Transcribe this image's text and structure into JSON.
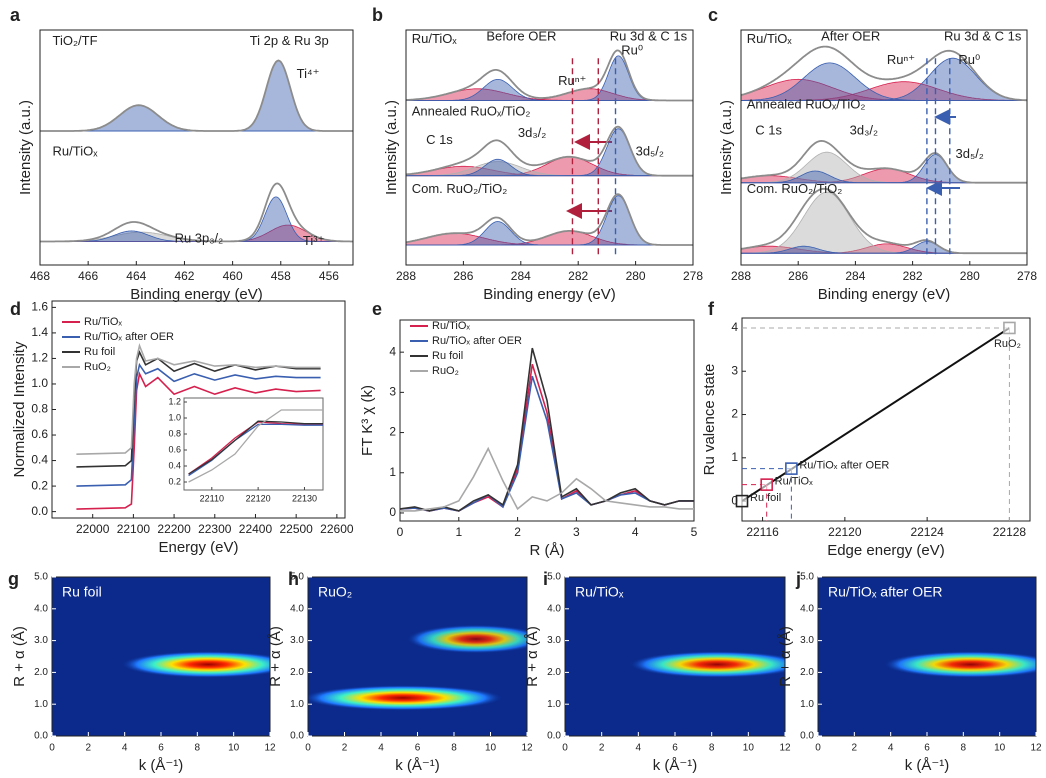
{
  "chart_data": [
    {
      "type": "xps",
      "label": "a",
      "xlabel": "Binding energy (eV)",
      "ylabel": "Intensity (a.u.)",
      "xlim": [
        468,
        455
      ],
      "xticks": [
        468,
        466,
        464,
        462,
        460,
        458,
        456
      ],
      "ylim": [
        0,
        10
      ],
      "spectra": [
        {
          "baseline": 5.7,
          "components": [
            {
              "center": 463.9,
              "height": 1.1,
              "width": 0.8,
              "color": "#3a5fb0"
            },
            {
              "center": 458.1,
              "height": 3.0,
              "width": 0.5,
              "color": "#3a5fb0"
            }
          ]
        },
        {
          "baseline": 1.0,
          "components": [
            {
              "center": 463.8,
              "height": 0.4,
              "width": 1.1,
              "color": "#b0b0b0"
            },
            {
              "center": 464.2,
              "height": 0.45,
              "width": 0.7,
              "color": "#3a5fb0"
            },
            {
              "center": 457.7,
              "height": 0.7,
              "width": 0.75,
              "color": "#d6204e"
            },
            {
              "center": 458.2,
              "height": 1.9,
              "width": 0.45,
              "color": "#3a5fb0"
            }
          ]
        }
      ],
      "annotations": [
        "TiO₂/TF",
        "Ti 2p & Ru 3p",
        "Ti⁴⁺",
        "Ru/TiOₓ",
        "Ru 3p₃/₂",
        "Ti³⁺"
      ]
    },
    {
      "type": "xps",
      "label": "b",
      "xlabel": "Binding energy (eV)",
      "ylabel": "Intensity (a.u.)",
      "xlim": [
        288,
        278
      ],
      "xticks": [
        288,
        286,
        284,
        282,
        280,
        278
      ],
      "ylim": [
        0,
        10
      ],
      "spectra": [
        {
          "baseline": 7.0,
          "components": [
            {
              "center": 285.5,
              "height": 0.5,
              "width": 1.0,
              "color": "#d6204e"
            },
            {
              "center": 281.6,
              "height": 0.5,
              "width": 0.8,
              "color": "#d6204e"
            },
            {
              "center": 284.8,
              "height": 0.9,
              "width": 0.5,
              "color": "#3a5fb0"
            },
            {
              "center": 280.6,
              "height": 1.9,
              "width": 0.35,
              "color": "#3a5fb0"
            }
          ]
        },
        {
          "baseline": 3.8,
          "components": [
            {
              "center": 286.0,
              "height": 0.4,
              "width": 1.0,
              "color": "#d6204e"
            },
            {
              "center": 282.3,
              "height": 0.8,
              "width": 0.8,
              "color": "#d6204e"
            },
            {
              "center": 284.8,
              "height": 0.6,
              "width": 0.8,
              "color": "#b0b0b0"
            },
            {
              "center": 284.8,
              "height": 0.7,
              "width": 0.45,
              "color": "#3a5fb0"
            },
            {
              "center": 280.6,
              "height": 2.0,
              "width": 0.4,
              "color": "#3a5fb0"
            }
          ]
        },
        {
          "baseline": 0.85,
          "components": [
            {
              "center": 286.3,
              "height": 0.5,
              "width": 1.0,
              "color": "#d6204e"
            },
            {
              "center": 282.3,
              "height": 0.6,
              "width": 0.8,
              "color": "#d6204e"
            },
            {
              "center": 284.8,
              "height": 1.0,
              "width": 0.45,
              "color": "#3a5fb0"
            },
            {
              "center": 280.6,
              "height": 2.1,
              "width": 0.4,
              "color": "#3a5fb0"
            }
          ]
        }
      ],
      "ref_lines": [
        {
          "value": 281.3,
          "color": "#b0203c"
        },
        {
          "value": 282.2,
          "color": "#b0203c"
        },
        {
          "value": 280.7,
          "color": "#3a5fb0"
        }
      ],
      "annotations": [
        "Ru/TiOₓ",
        "Before OER",
        "Ru 3d & C 1s",
        "Ru⁰",
        "Ruⁿ⁺",
        "Annealed RuOₓ/TiO₂",
        "C 1s",
        "3d₃/₂",
        "3d₅/₂",
        "Com. RuO₂/TiO₂"
      ]
    },
    {
      "type": "xps",
      "label": "c",
      "xlabel": "Binding energy (eV)",
      "ylabel": "Intensity (a.u.)",
      "xlim": [
        288,
        278
      ],
      "xticks": [
        288,
        286,
        284,
        282,
        280,
        278
      ],
      "ylim": [
        0,
        10
      ],
      "spectra": [
        {
          "baseline": 7.0,
          "components": [
            {
              "center": 286.0,
              "height": 0.9,
              "width": 1.2,
              "color": "#d6204e"
            },
            {
              "center": 282.3,
              "height": 0.8,
              "width": 1.2,
              "color": "#d6204e"
            },
            {
              "center": 284.9,
              "height": 1.6,
              "width": 0.9,
              "color": "#3a5fb0"
            },
            {
              "center": 280.6,
              "height": 1.8,
              "width": 0.8,
              "color": "#3a5fb0"
            }
          ]
        },
        {
          "baseline": 3.5,
          "components": [
            {
              "center": 287.0,
              "height": 0.3,
              "width": 1.0,
              "color": "#d6204e"
            },
            {
              "center": 282.9,
              "height": 0.6,
              "width": 0.8,
              "color": "#d6204e"
            },
            {
              "center": 285.0,
              "height": 1.3,
              "width": 0.7,
              "color": "#b0b0b0"
            },
            {
              "center": 285.4,
              "height": 0.5,
              "width": 0.5,
              "color": "#3a5fb0"
            },
            {
              "center": 281.2,
              "height": 1.2,
              "width": 0.4,
              "color": "#3a5fb0"
            }
          ]
        },
        {
          "baseline": 0.5,
          "components": [
            {
              "center": 287.0,
              "height": 0.3,
              "width": 1.0,
              "color": "#d6204e"
            },
            {
              "center": 282.9,
              "height": 0.4,
              "width": 0.7,
              "color": "#d6204e"
            },
            {
              "center": 285.0,
              "height": 2.6,
              "width": 0.8,
              "color": "#b0b0b0"
            },
            {
              "center": 285.8,
              "height": 0.3,
              "width": 0.5,
              "color": "#3a5fb0"
            },
            {
              "center": 281.5,
              "height": 0.5,
              "width": 0.4,
              "color": "#3a5fb0"
            }
          ]
        }
      ],
      "ref_lines": [
        {
          "value": 280.7,
          "color": "#3a5fb0"
        },
        {
          "value": 281.2,
          "color": "#3a5fb0"
        },
        {
          "value": 281.5,
          "color": "#3a5fb0"
        }
      ],
      "annotations": [
        "Ru/TiOₓ",
        "After OER",
        "Ru 3d & C 1s",
        "Ruⁿ⁺",
        "Ru⁰",
        "Annealed RuOₓ/TiO₂",
        "C 1s",
        "3d₃/₂",
        "3d₅/₂",
        "Com. RuO₂/TiO₂"
      ]
    },
    {
      "type": "line",
      "label": "d",
      "xlabel": "Energy (eV)",
      "ylabel": "Normalized Intensity",
      "xlim": [
        21900,
        22620
      ],
      "xticks": [
        22000,
        22100,
        22200,
        22300,
        22400,
        22500,
        22600
      ],
      "ylim": [
        -0.05,
        1.65
      ],
      "yticks": [
        {
          "value": 0,
          "label": "0.0"
        },
        0.2,
        0.4,
        0.6,
        0.8,
        {
          "value": 1,
          "label": "1.0"
        },
        1.2,
        1.4,
        1.6
      ],
      "x": [
        21960,
        22080,
        22095,
        22102,
        22108,
        22115,
        22130,
        22160,
        22200,
        22250,
        22300,
        22350,
        22400,
        22450,
        22500,
        22560
      ],
      "series": [
        {
          "name": "Ru/TiOₓ",
          "color": "#d6204e",
          "values": [
            0.02,
            0.03,
            0.06,
            0.5,
            0.95,
            1.08,
            0.98,
            1.05,
            0.92,
            0.98,
            0.92,
            0.97,
            0.93,
            0.96,
            0.94,
            0.95
          ]
        },
        {
          "name": "Ru/TiOₓ after OER",
          "color": "#3a5fb0",
          "values": [
            0.2,
            0.21,
            0.25,
            0.7,
            1.05,
            1.15,
            1.08,
            1.12,
            1.02,
            1.08,
            1.03,
            1.07,
            1.04,
            1.06,
            1.05,
            1.05
          ]
        },
        {
          "name": "Ru foil",
          "color": "#333333",
          "values": [
            0.35,
            0.36,
            0.4,
            0.9,
            1.18,
            1.25,
            1.15,
            1.2,
            1.1,
            1.16,
            1.1,
            1.15,
            1.11,
            1.14,
            1.12,
            1.12
          ]
        },
        {
          "name": "RuO₂",
          "color": "#a8a8a8",
          "values": [
            0.45,
            0.46,
            0.5,
            1.0,
            1.2,
            1.3,
            1.18,
            1.2,
            1.15,
            1.18,
            1.14,
            1.15,
            1.13,
            1.14,
            1.13,
            1.13
          ]
        }
      ],
      "inset": {
        "xlim": [
          22104,
          22134
        ],
        "xticks": [
          22110,
          22120,
          22130
        ],
        "ylim": [
          0.1,
          1.25
        ],
        "yticks": [
          0.2,
          0.4,
          0.6,
          0.8,
          {
            "value": 1,
            "label": "1.0"
          },
          1.2
        ],
        "x": [
          22105,
          22110,
          22115,
          22120,
          22125,
          22130,
          22134
        ],
        "series": [
          {
            "color": "#d6204e",
            "values": [
              0.3,
              0.5,
              0.75,
              0.95,
              0.93,
              0.92,
              0.92
            ]
          },
          {
            "color": "#3a5fb0",
            "values": [
              0.28,
              0.47,
              0.72,
              0.92,
              0.92,
              0.91,
              0.91
            ]
          },
          {
            "color": "#333333",
            "values": [
              0.3,
              0.48,
              0.72,
              0.96,
              0.95,
              0.93,
              0.93
            ]
          },
          {
            "color": "#a8a8a8",
            "values": [
              0.2,
              0.35,
              0.55,
              0.9,
              1.1,
              1.1,
              1.1
            ]
          }
        ]
      }
    },
    {
      "type": "line",
      "label": "e",
      "xlabel": "R (Å)",
      "ylabel": "FT K³ χ (k)",
      "xlim": [
        0,
        5
      ],
      "xticks": [
        0,
        1,
        2,
        3,
        4,
        5
      ],
      "ylim": [
        -0.2,
        4.8
      ],
      "yticks": [
        0,
        1,
        2,
        3,
        4
      ],
      "x": [
        0,
        0.25,
        0.5,
        0.75,
        1,
        1.25,
        1.5,
        1.75,
        2,
        2.25,
        2.5,
        2.75,
        3,
        3.25,
        3.5,
        3.75,
        4,
        4.25,
        4.5,
        4.75,
        5
      ],
      "series": [
        {
          "name": "Ru/TiOₓ",
          "color": "#d6204e",
          "values": [
            0.1,
            0.12,
            0.05,
            0.12,
            0.05,
            0.25,
            0.4,
            0.15,
            1.1,
            3.7,
            2.5,
            0.35,
            0.55,
            0.2,
            0.3,
            0.45,
            0.55,
            0.3,
            0.2,
            0.3,
            0.3
          ]
        },
        {
          "name": "Ru/TiOₓ after OER",
          "color": "#3a5fb0",
          "values": [
            0.1,
            0.12,
            0.05,
            0.12,
            0.05,
            0.25,
            0.45,
            0.15,
            1.0,
            3.4,
            2.3,
            0.35,
            0.5,
            0.2,
            0.3,
            0.45,
            0.5,
            0.3,
            0.2,
            0.3,
            0.3
          ]
        },
        {
          "name": "Ru foil",
          "color": "#333333",
          "values": [
            0.1,
            0.15,
            0.05,
            0.15,
            0.05,
            0.3,
            0.45,
            0.2,
            1.2,
            4.1,
            2.8,
            0.4,
            0.6,
            0.2,
            0.3,
            0.5,
            0.6,
            0.3,
            0.2,
            0.3,
            0.3
          ]
        },
        {
          "name": "RuO₂",
          "color": "#a8a8a8",
          "values": [
            0.05,
            0.05,
            0.1,
            0.15,
            0.3,
            0.9,
            1.6,
            0.8,
            0.1,
            0.4,
            0.3,
            0.5,
            0.85,
            0.6,
            0.3,
            0.25,
            0.2,
            0.15,
            0.15,
            0.1,
            0.1
          ]
        }
      ]
    },
    {
      "type": "scatter",
      "label": "f",
      "xlabel": "Edge energy (eV)",
      "ylabel": "Ru valence state",
      "xlim": [
        22115,
        22129
      ],
      "xticks": [
        22116,
        22120,
        22124,
        22128
      ],
      "ylim": [
        -0.46,
        4.23
      ],
      "yticks": [
        0,
        1,
        2,
        3,
        4
      ],
      "fit": {
        "x": [
          22115,
          22128
        ],
        "values": [
          0,
          4
        ]
      },
      "points": [
        {
          "name": "Ru foil",
          "color": "#222222",
          "x": 22115.0,
          "value": 0
        },
        {
          "name": "Ru/TiOₓ",
          "color": "#d6204e",
          "x": 22116.2,
          "value": 0.38
        },
        {
          "name": "Ru/TiOₓ after OER",
          "color": "#3a5fb0",
          "x": 22117.4,
          "value": 0.75
        },
        {
          "name": "RuO₂",
          "color": "#a8a8a8",
          "x": 22128.0,
          "value": 4
        }
      ]
    },
    {
      "type": "heatmap",
      "label": "g",
      "title": "Ru foil",
      "xlabel": "k (Å⁻¹)",
      "ylabel": "R + α (Å)",
      "xlim": [
        0,
        12
      ],
      "xticks": [
        0,
        2,
        4,
        6,
        8,
        10,
        12
      ],
      "ylim": [
        0,
        5
      ],
      "yticks": [
        {
          "value": 0,
          "label": "0.0"
        },
        {
          "value": 1,
          "label": "1.0"
        },
        {
          "value": 2,
          "label": "2.0"
        },
        {
          "value": 3,
          "label": "3.0"
        },
        {
          "value": 4,
          "label": "4.0"
        },
        {
          "value": 5,
          "label": "5.0"
        }
      ],
      "blobs": [
        {
          "k": 8.6,
          "R": 2.25,
          "intensity": 1.0,
          "k_width": 4.8,
          "R_width": 0.42
        }
      ]
    },
    {
      "type": "heatmap",
      "label": "h",
      "title": "RuO₂",
      "xlabel": "k (Å⁻¹)",
      "ylabel": "R + α (Å)",
      "xlim": [
        0,
        12
      ],
      "xticks": [
        0,
        2,
        4,
        6,
        8,
        10,
        12
      ],
      "ylim": [
        0,
        5
      ],
      "yticks": [
        {
          "value": 0,
          "label": "0.0"
        },
        {
          "value": 1,
          "label": "1.0"
        },
        {
          "value": 2,
          "label": "2.0"
        },
        {
          "value": 3,
          "label": "3.0"
        },
        {
          "value": 4,
          "label": "4.0"
        },
        {
          "value": 5,
          "label": "5.0"
        }
      ],
      "blobs": [
        {
          "k": 5.2,
          "R": 1.2,
          "intensity": 1.0,
          "k_width": 5.5,
          "R_width": 0.4
        },
        {
          "k": 9.2,
          "R": 3.05,
          "intensity": 0.85,
          "k_width": 3.8,
          "R_width": 0.45
        }
      ]
    },
    {
      "type": "heatmap",
      "label": "i",
      "title": "Ru/TiOₓ",
      "xlabel": "k (Å⁻¹)",
      "ylabel": "R + α (Å)",
      "xlim": [
        0,
        12
      ],
      "xticks": [
        0,
        2,
        4,
        6,
        8,
        10,
        12
      ],
      "ylim": [
        0,
        5
      ],
      "yticks": [
        {
          "value": 0,
          "label": "0.0"
        },
        {
          "value": 1,
          "label": "1.0"
        },
        {
          "value": 2,
          "label": "2.0"
        },
        {
          "value": 3,
          "label": "3.0"
        },
        {
          "value": 4,
          "label": "4.0"
        },
        {
          "value": 5,
          "label": "5.0"
        }
      ],
      "blobs": [
        {
          "k": 8.3,
          "R": 2.25,
          "intensity": 0.95,
          "k_width": 4.8,
          "R_width": 0.42
        }
      ]
    },
    {
      "type": "heatmap",
      "label": "j",
      "title": "Ru/TiOₓ after OER",
      "xlabel": "k (Å⁻¹)",
      "ylabel": "R + α (Å)",
      "xlim": [
        0,
        12
      ],
      "xticks": [
        0,
        2,
        4,
        6,
        8,
        10,
        12
      ],
      "ylim": [
        0,
        5
      ],
      "yticks": [
        {
          "value": 0,
          "label": "0.0"
        },
        {
          "value": 1,
          "label": "1.0"
        },
        {
          "value": 2,
          "label": "2.0"
        },
        {
          "value": 3,
          "label": "3.0"
        },
        {
          "value": 4,
          "label": "4.0"
        },
        {
          "value": 5,
          "label": "5.0"
        }
      ],
      "blobs": [
        {
          "k": 8.4,
          "R": 2.25,
          "intensity": 0.95,
          "k_width": 4.8,
          "R_width": 0.42
        }
      ]
    }
  ]
}
